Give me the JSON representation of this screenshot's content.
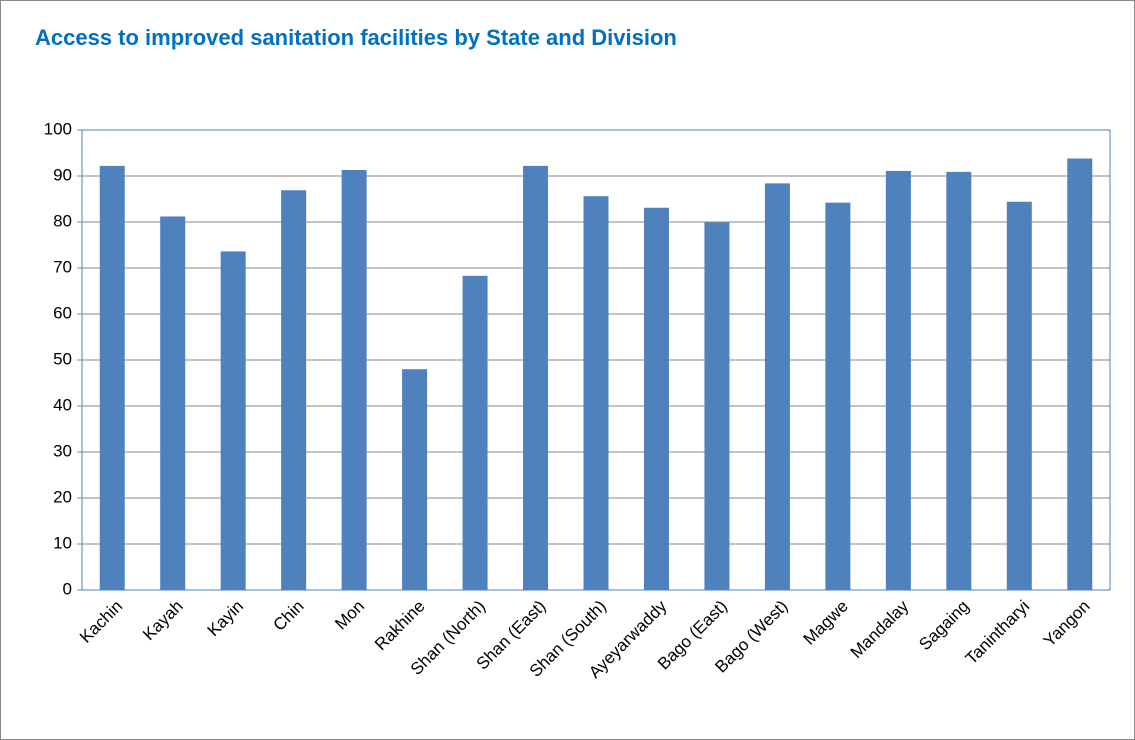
{
  "chart_data": {
    "type": "bar",
    "title": "Access to improved sanitation facilities by State and Division",
    "categories": [
      "Kachin",
      "Kayah",
      "Kayin",
      "Chin",
      "Mon",
      "Rakhine",
      "Shan (North)",
      "Shan (East)",
      "Shan (South)",
      "Ayeyarwaddy",
      "Bago (East)",
      "Bago (West)",
      "Magwe",
      "Mandalay",
      "Sagaing",
      "Tanintharyi",
      "Yangon"
    ],
    "values": [
      92.2,
      81.2,
      73.6,
      86.9,
      91.3,
      48,
      68.3,
      92.2,
      85.6,
      83.1,
      79.9,
      88.4,
      84.2,
      91.1,
      90.9,
      84.4,
      93.8
    ],
    "color": "#4f81bd",
    "ylim": [
      0,
      100
    ],
    "yticks": [
      0,
      10,
      20,
      30,
      40,
      50,
      60,
      70,
      80,
      90,
      100
    ],
    "grid": true
  }
}
